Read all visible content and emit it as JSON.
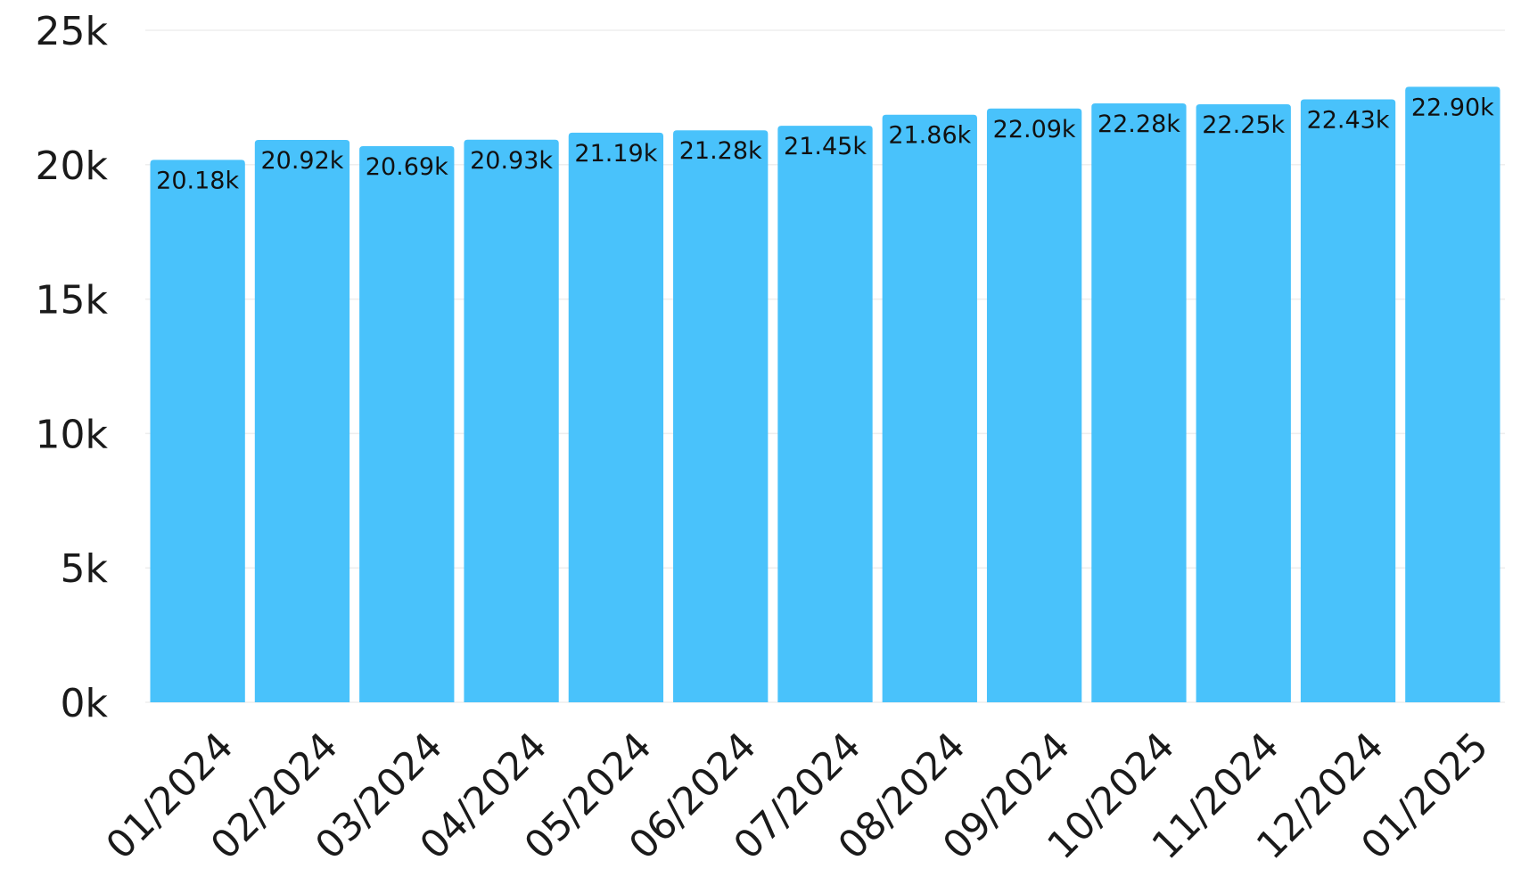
{
  "chart_data": {
    "type": "bar",
    "categories": [
      "01/2024",
      "02/2024",
      "03/2024",
      "04/2024",
      "05/2024",
      "06/2024",
      "07/2024",
      "08/2024",
      "09/2024",
      "10/2024",
      "11/2024",
      "12/2024",
      "01/2025"
    ],
    "values": [
      20180,
      20920,
      20690,
      20930,
      21190,
      21280,
      21450,
      21860,
      22090,
      22280,
      22250,
      22430,
      22900
    ],
    "data_labels": [
      "20.18k",
      "20.92k",
      "20.69k",
      "20.93k",
      "21.19k",
      "21.28k",
      "21.45k",
      "21.86k",
      "22.09k",
      "22.28k",
      "22.25k",
      "22.43k",
      "22.90k"
    ],
    "y_ticks": [
      0,
      5000,
      10000,
      15000,
      20000,
      25000
    ],
    "y_tick_labels": [
      "0k",
      "5k",
      "10k",
      "15k",
      "20k",
      "25k"
    ],
    "ylim": [
      0,
      25000
    ],
    "title": "",
    "xlabel": "",
    "ylabel": "",
    "grid": true,
    "legend": "none",
    "colors": {
      "bar": "#49c2fb",
      "grid": "#eeeeee",
      "text": "#1a1a1a"
    }
  }
}
